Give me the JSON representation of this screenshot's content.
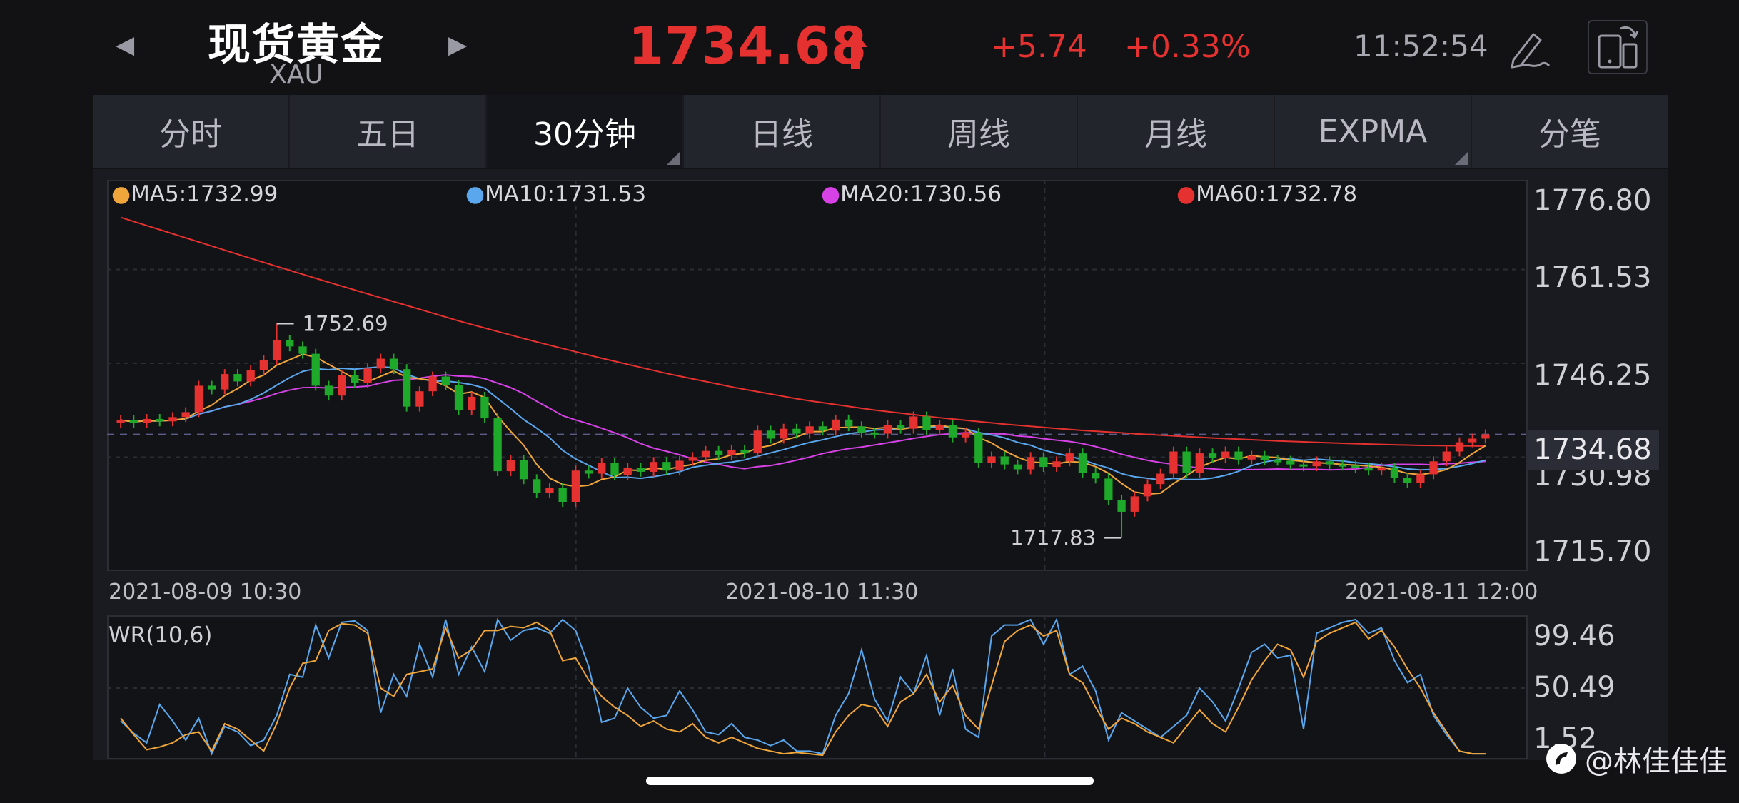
{
  "header": {
    "title": "现货黄金",
    "symbol": "XAU",
    "price": "1734.68",
    "change": "+5.74",
    "change_pct": "+0.33%",
    "time": "11:52:54",
    "up_color": "#e5312f",
    "icons": [
      "prev-arrow-icon",
      "next-arrow-icon",
      "price-up-arrow-icon",
      "pen-icon",
      "landscape-toggle-icon"
    ]
  },
  "tabs": [
    {
      "label": "分时"
    },
    {
      "label": "五日"
    },
    {
      "label": "30分钟",
      "active": true
    },
    {
      "label": "日线"
    },
    {
      "label": "周线"
    },
    {
      "label": "月线"
    },
    {
      "label": "EXPMA"
    },
    {
      "label": "分笔"
    }
  ],
  "main_chart": {
    "ma_labels": [
      {
        "text": "MA5:1732.99",
        "color": "#f0a63a"
      },
      {
        "text": "MA10:1731.53",
        "color": "#5aa7ee"
      },
      {
        "text": "MA20:1730.56",
        "color": "#d642e6"
      },
      {
        "text": "MA60:1732.78",
        "color": "#e5312f"
      }
    ],
    "y_ticks": [
      "1776.80",
      "1761.53",
      "1746.25",
      "1730.98",
      "1715.70"
    ],
    "current_price_tag": "1734.68",
    "high_annotation": "1752.69",
    "low_annotation": "1717.83",
    "x_dates": [
      "2021-08-09 10:30",
      "2021-08-10 11:30",
      "2021-08-11 12:00"
    ]
  },
  "wr_panel": {
    "label": "WR(10,6)",
    "y_ticks": [
      "99.46",
      "50.49",
      "1.52"
    ]
  },
  "watermark": "@林佳佳佳",
  "chart_data": [
    {
      "type": "candlestick",
      "title": "",
      "ylim": [
        1715.7,
        1776.8
      ],
      "y_ticks": [
        1776.8,
        1761.53,
        1746.25,
        1730.98,
        1715.7
      ],
      "x_ticks": [
        "2021-08-09 10:30",
        "2021-08-10 11:30",
        "2021-08-11 12:00"
      ],
      "grid": true,
      "up_color": "#e5312f",
      "down_color": "#1fa92a",
      "close": [
        1737.0,
        1736.5,
        1737.2,
        1736.8,
        1737.5,
        1738.3,
        1742.6,
        1742.0,
        1744.5,
        1743.3,
        1745.1,
        1746.8,
        1750.0,
        1749.0,
        1747.8,
        1742.6,
        1741.0,
        1744.3,
        1743.0,
        1745.4,
        1747.0,
        1745.3,
        1739.2,
        1741.7,
        1744.1,
        1742.7,
        1738.6,
        1740.8,
        1737.3,
        1728.7,
        1730.5,
        1727.4,
        1725.2,
        1726.0,
        1723.7,
        1728.8,
        1728.3,
        1730.0,
        1728.1,
        1729.2,
        1728.6,
        1730.2,
        1728.8,
        1730.4,
        1731.0,
        1732.0,
        1731.3,
        1732.2,
        1731.6,
        1735.3,
        1734.0,
        1735.6,
        1734.8,
        1736.0,
        1735.3,
        1737.1,
        1736.0,
        1735.0,
        1734.8,
        1736.2,
        1735.6,
        1737.6,
        1735.4,
        1736.2,
        1734.2,
        1734.9,
        1730.1,
        1731.1,
        1729.8,
        1729.0,
        1731.0,
        1729.4,
        1730.3,
        1731.6,
        1728.4,
        1727.5,
        1724.0,
        1722.1,
        1724.6,
        1726.6,
        1728.3,
        1731.9,
        1728.4,
        1731.6,
        1730.9,
        1731.9,
        1730.6,
        1731.2,
        1730.5,
        1730.4,
        1729.8,
        1729.5,
        1730.3,
        1729.8,
        1729.6,
        1729.2,
        1728.8,
        1729.3,
        1727.6,
        1726.8,
        1728.2,
        1730.3,
        1731.9,
        1733.4,
        1734.0,
        1734.7
      ],
      "high": 1752.69,
      "low": 1717.83,
      "last": 1734.68,
      "series": [
        {
          "name": "MA5",
          "color": "#f0a63a",
          "last": 1732.99
        },
        {
          "name": "MA10",
          "color": "#5aa7ee",
          "last": 1731.53
        },
        {
          "name": "MA20",
          "color": "#d642e6",
          "last": 1730.56
        },
        {
          "name": "MA60",
          "color": "#e5312f",
          "last": 1732.78,
          "values": [
            1770.0,
            1766.5,
            1763.0,
            1759.6,
            1756.3,
            1753.0,
            1750.0,
            1747.2,
            1744.6,
            1742.3,
            1740.3,
            1738.7,
            1737.4,
            1736.3,
            1735.4,
            1734.7,
            1734.1,
            1733.6,
            1733.2,
            1732.9,
            1732.78
          ]
        }
      ]
    },
    {
      "type": "line",
      "title": "WR(10,6)",
      "ylim": [
        1.52,
        99.46
      ],
      "y_ticks": [
        99.46,
        50.49,
        1.52
      ],
      "series": [
        {
          "name": "WR10",
          "color": "#5aa7ee",
          "values": [
            26,
            17,
            10,
            38,
            26,
            12,
            28,
            2,
            22,
            18,
            8,
            12,
            30,
            60,
            58,
            96,
            72,
            98,
            99,
            92,
            32,
            60,
            44,
            82,
            58,
            100,
            60,
            80,
            62,
            100,
            85,
            92,
            94,
            90,
            100,
            92,
            66,
            25,
            28,
            50,
            36,
            28,
            30,
            48,
            34,
            18,
            16,
            24,
            14,
            12,
            8,
            12,
            4,
            4,
            2,
            30,
            46,
            78,
            42,
            26,
            58,
            46,
            74,
            30,
            64,
            20,
            14,
            88,
            96,
            96,
            100,
            82,
            100,
            60,
            66,
            48,
            12,
            32,
            26,
            20,
            14,
            22,
            30,
            50,
            40,
            26,
            50,
            76,
            82,
            72,
            74,
            20,
            90,
            94,
            98,
            100,
            90,
            94,
            70,
            54,
            60,
            30,
            16,
            4,
            2,
            2
          ]
        },
        {
          "name": "WR6",
          "color": "#f0a63a",
          "values": [
            28,
            16,
            5,
            7,
            10,
            16,
            18,
            4,
            24,
            20,
            12,
            4,
            24,
            50,
            68,
            70,
            92,
            97,
            96,
            90,
            50,
            44,
            60,
            62,
            64,
            94,
            72,
            78,
            92,
            92,
            95,
            94,
            98,
            92,
            70,
            72,
            56,
            44,
            36,
            30,
            22,
            26,
            20,
            18,
            24,
            14,
            10,
            14,
            10,
            6,
            4,
            2,
            3,
            2,
            1,
            18,
            30,
            38,
            36,
            22,
            40,
            46,
            60,
            40,
            52,
            30,
            20,
            52,
            84,
            92,
            96,
            88,
            92,
            60,
            54,
            36,
            20,
            28,
            24,
            18,
            14,
            10,
            22,
            34,
            24,
            18,
            36,
            56,
            70,
            82,
            78,
            58,
            84,
            90,
            94,
            98,
            86,
            92,
            80,
            64,
            50,
            32,
            18,
            4,
            2,
            2
          ]
        }
      ]
    }
  ]
}
